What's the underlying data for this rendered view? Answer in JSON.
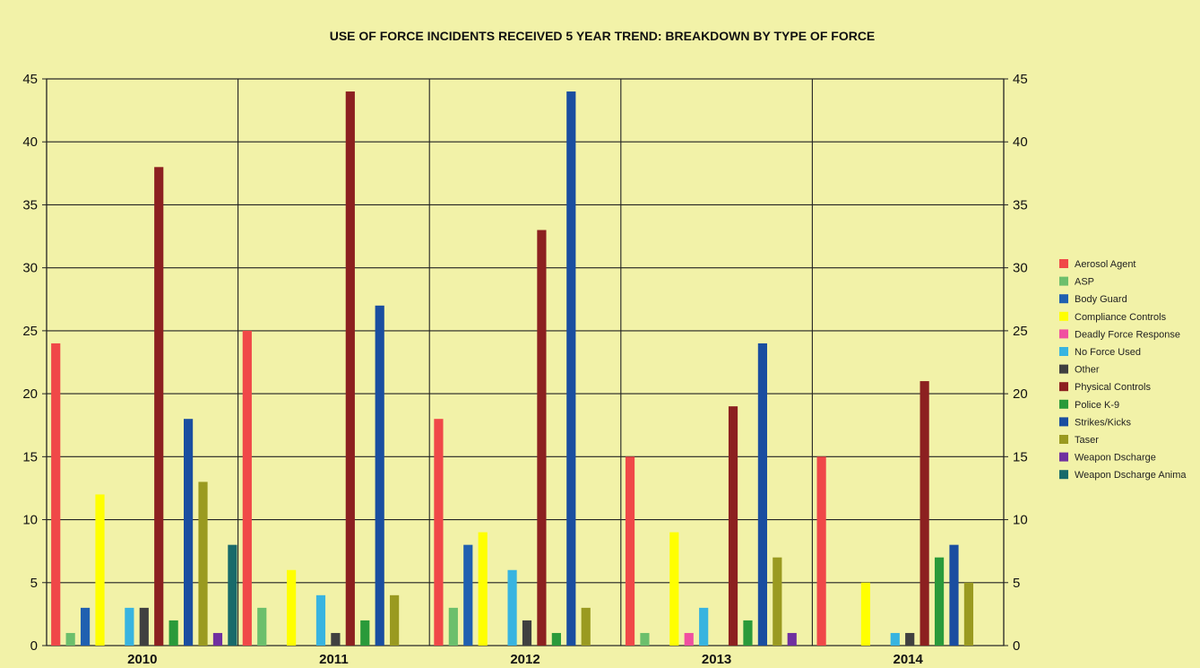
{
  "chart_data": {
    "type": "bar",
    "title": "USE OF FORCE INCIDENTS RECEIVED 5 YEAR TREND:  BREAKDOWN BY TYPE OF FORCE",
    "categories": [
      "2010",
      "2011",
      "2012",
      "2013",
      "2014"
    ],
    "ylim": [
      0,
      45
    ],
    "yticks": [
      0,
      5,
      10,
      15,
      20,
      25,
      30,
      35,
      40,
      45
    ],
    "secondary_y_axis": true,
    "grid": true,
    "legend_position": "right",
    "series": [
      {
        "name": "Aerosol Agent",
        "color": "#f04848",
        "values": [
          24,
          25,
          18,
          15,
          15
        ]
      },
      {
        "name": "ASP",
        "color": "#6cbf6c",
        "values": [
          1,
          3,
          3,
          1,
          0
        ]
      },
      {
        "name": "Body Guard",
        "color": "#2060b0",
        "values": [
          3,
          0,
          8,
          0,
          0
        ]
      },
      {
        "name": "Compliance Controls",
        "color": "#ffff00",
        "values": [
          12,
          6,
          9,
          9,
          5
        ]
      },
      {
        "name": "Deadly Force Response",
        "color": "#f050a0",
        "values": [
          0,
          0,
          0,
          1,
          0
        ]
      },
      {
        "name": "No Force Used",
        "color": "#38b4e0",
        "values": [
          3,
          4,
          6,
          3,
          1
        ]
      },
      {
        "name": "Other",
        "color": "#404040",
        "values": [
          3,
          1,
          2,
          0,
          1
        ]
      },
      {
        "name": "Physical Controls",
        "color": "#8c2020",
        "values": [
          38,
          44,
          33,
          19,
          21
        ]
      },
      {
        "name": "Police K-9",
        "color": "#2a9a3a",
        "values": [
          2,
          2,
          1,
          2,
          7
        ]
      },
      {
        "name": "Strikes/Kicks",
        "color": "#1a4ea0",
        "values": [
          18,
          27,
          44,
          24,
          8
        ]
      },
      {
        "name": "Taser",
        "color": "#9a9a20",
        "values": [
          13,
          4,
          3,
          7,
          5
        ]
      },
      {
        "name": "Weapon Dscharge",
        "color": "#7030a0",
        "values": [
          1,
          0,
          0,
          1,
          0
        ]
      },
      {
        "name": "Weapon Dscharge Anima",
        "color": "#186a6a",
        "values": [
          8,
          0,
          0,
          0,
          0
        ]
      }
    ]
  }
}
